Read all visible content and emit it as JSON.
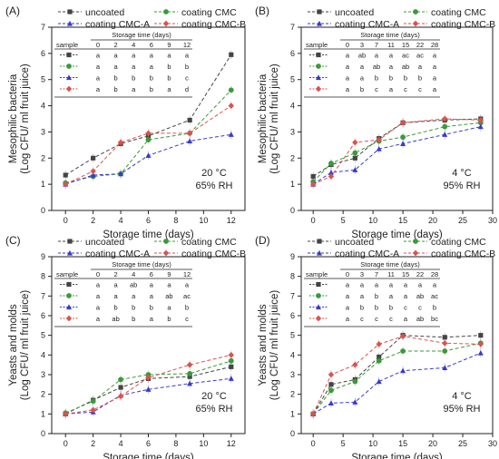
{
  "legend": [
    {
      "name": "uncoated",
      "color": "#444444",
      "marker": "square"
    },
    {
      "name": "coating CMC",
      "color": "#3a9a3a",
      "marker": "circle"
    },
    {
      "name": "coating CMC-A",
      "color": "#3a3ac8",
      "marker": "triangle"
    },
    {
      "name": "coating CMC-B",
      "color": "#d9534f",
      "marker": "diamond"
    }
  ],
  "chart_data": [
    {
      "panel": "(A)",
      "type": "line",
      "ylabel_line1": "Mesophilic bacteria",
      "ylabel_line2": "(Log CFU/ ml fruit juice)",
      "xlabel": "Storage time (days)",
      "xlim": [
        -1,
        13
      ],
      "ylim": [
        0,
        7
      ],
      "xticks": [
        0,
        2,
        4,
        6,
        8,
        10,
        12
      ],
      "yticks": [
        0,
        1,
        2,
        3,
        4,
        5,
        6,
        7
      ],
      "condition_temp": "20 °C",
      "condition_rh": "65% RH",
      "series": [
        {
          "name": "uncoated",
          "x": [
            0,
            2,
            4,
            6,
            9,
            12
          ],
          "y": [
            1.35,
            2.0,
            2.55,
            2.85,
            3.45,
            5.95
          ]
        },
        {
          "name": "coating CMC",
          "x": [
            0,
            2,
            4,
            6,
            9,
            12
          ],
          "y": [
            1.05,
            1.3,
            1.4,
            2.7,
            2.95,
            4.6
          ]
        },
        {
          "name": "coating CMC-A",
          "x": [
            0,
            2,
            4,
            6,
            9,
            12
          ],
          "y": [
            1.0,
            1.35,
            1.4,
            2.1,
            2.65,
            2.9
          ]
        },
        {
          "name": "coating CMC-B",
          "x": [
            0,
            2,
            4,
            6,
            9,
            12
          ],
          "y": [
            1.0,
            1.5,
            2.6,
            2.95,
            2.95,
            4.0
          ]
        }
      ],
      "table": {
        "title": "Storage time (days)",
        "sample_label": "sample",
        "columns": [
          "0",
          "2",
          "4",
          "6",
          "9",
          "12"
        ],
        "rows": [
          [
            "a",
            "a",
            "a",
            "a",
            "a",
            "a"
          ],
          [
            "a",
            "a",
            "a",
            "a",
            "b",
            "b"
          ],
          [
            "a",
            "b",
            "b",
            "b",
            "b",
            "c"
          ],
          [
            "a",
            "b",
            "a",
            "b",
            "a",
            "d"
          ]
        ]
      }
    },
    {
      "panel": "(B)",
      "type": "line",
      "ylabel_line1": "Mesophilic bacteria",
      "ylabel_line2": "(Log CFU/ ml fruit juice)",
      "xlabel": "Storage time (days)",
      "xlim": [
        -2,
        30
      ],
      "ylim": [
        0,
        7
      ],
      "xticks": [
        0,
        5,
        10,
        15,
        20,
        25,
        30
      ],
      "yticks": [
        0,
        1,
        2,
        3,
        4,
        5,
        6,
        7
      ],
      "condition_temp": "4 °C",
      "condition_rh": "95% RH",
      "series": [
        {
          "name": "uncoated",
          "x": [
            0,
            3,
            7,
            11,
            15,
            22,
            28
          ],
          "y": [
            1.3,
            1.75,
            2.0,
            2.75,
            3.35,
            3.45,
            3.5
          ]
        },
        {
          "name": "coating CMC",
          "x": [
            0,
            3,
            7,
            11,
            15,
            22,
            28
          ],
          "y": [
            1.1,
            1.8,
            2.2,
            2.65,
            2.8,
            3.2,
            3.35
          ]
        },
        {
          "name": "coating CMC-A",
          "x": [
            0,
            3,
            7,
            11,
            15,
            22,
            28
          ],
          "y": [
            1.0,
            1.45,
            1.55,
            2.35,
            2.55,
            2.9,
            3.2
          ]
        },
        {
          "name": "coating CMC-B",
          "x": [
            0,
            3,
            7,
            11,
            15,
            22,
            28
          ],
          "y": [
            1.0,
            1.3,
            2.6,
            2.7,
            3.35,
            3.5,
            3.45
          ]
        }
      ],
      "table": {
        "title": "Storage time (days)",
        "sample_label": "sample",
        "columns": [
          "0",
          "3",
          "7",
          "11",
          "15",
          "22",
          "28"
        ],
        "rows": [
          [
            "a",
            "ab",
            "a",
            "a",
            "ac",
            "ac",
            "a"
          ],
          [
            "a",
            "a",
            "ab",
            "a",
            "ab",
            "a",
            "a"
          ],
          [
            "a",
            "a",
            "b",
            "b",
            "b",
            "b",
            "a"
          ],
          [
            "a",
            "b",
            "c",
            "a",
            "c",
            "c",
            "a"
          ]
        ]
      }
    },
    {
      "panel": "(C)",
      "type": "line",
      "ylabel_line1": "Yeasts and molds",
      "ylabel_line2": "(Log CFU/ ml fruit juice)",
      "xlabel": "Storage time (days)",
      "xlim": [
        -1,
        13
      ],
      "ylim": [
        0,
        9
      ],
      "xticks": [
        0,
        2,
        4,
        6,
        8,
        10,
        12
      ],
      "yticks": [
        0,
        1,
        2,
        3,
        4,
        5,
        6,
        7,
        8,
        9
      ],
      "condition_temp": "20 °C",
      "condition_rh": "65% RH",
      "series": [
        {
          "name": "uncoated",
          "x": [
            0,
            2,
            4,
            6,
            9,
            12
          ],
          "y": [
            1.0,
            1.7,
            2.35,
            2.8,
            2.9,
            3.4
          ]
        },
        {
          "name": "coating CMC",
          "x": [
            0,
            2,
            4,
            6,
            9,
            12
          ],
          "y": [
            1.05,
            1.65,
            2.75,
            3.0,
            3.05,
            3.7
          ]
        },
        {
          "name": "coating CMC-A",
          "x": [
            0,
            2,
            4,
            6,
            9,
            12
          ],
          "y": [
            1.0,
            1.1,
            1.95,
            2.25,
            2.55,
            2.8
          ]
        },
        {
          "name": "coating CMC-B",
          "x": [
            0,
            2,
            4,
            6,
            9,
            12
          ],
          "y": [
            1.0,
            1.2,
            1.9,
            2.85,
            3.5,
            4.0
          ]
        }
      ],
      "table": {
        "title": "Storage time (days)",
        "sample_label": "sample",
        "columns": [
          "0",
          "2",
          "4",
          "6",
          "9",
          "12"
        ],
        "rows": [
          [
            "a",
            "a",
            "ab",
            "a",
            "a",
            "a"
          ],
          [
            "a",
            "a",
            "a",
            "a",
            "ab",
            "ac"
          ],
          [
            "a",
            "b",
            "b",
            "b",
            "a",
            "b"
          ],
          [
            "a",
            "ab",
            "b",
            "a",
            "b",
            "c"
          ]
        ]
      }
    },
    {
      "panel": "(D)",
      "type": "line",
      "ylabel_line1": "Yeasts and molds",
      "ylabel_line2": "(Log CFU/ ml fruit juice)",
      "xlabel": "Storage time (days)",
      "xlim": [
        -2,
        30
      ],
      "ylim": [
        0,
        9
      ],
      "xticks": [
        0,
        5,
        10,
        15,
        20,
        25,
        30
      ],
      "yticks": [
        0,
        1,
        2,
        3,
        4,
        5,
        6,
        7,
        8,
        9
      ],
      "condition_temp": "4 °C",
      "condition_rh": "95% RH",
      "series": [
        {
          "name": "uncoated",
          "x": [
            0,
            3,
            7,
            11,
            15,
            22,
            28
          ],
          "y": [
            1.0,
            2.5,
            2.75,
            3.9,
            5.0,
            4.9,
            5.0
          ]
        },
        {
          "name": "coating CMC",
          "x": [
            0,
            3,
            7,
            11,
            15,
            22,
            28
          ],
          "y": [
            1.0,
            2.2,
            2.65,
            3.7,
            4.2,
            4.2,
            4.6
          ]
        },
        {
          "name": "coating CMC-A",
          "x": [
            0,
            3,
            7,
            11,
            15,
            22,
            28
          ],
          "y": [
            1.0,
            1.55,
            1.6,
            2.65,
            3.2,
            3.35,
            4.1
          ]
        },
        {
          "name": "coating CMC-B",
          "x": [
            0,
            3,
            7,
            11,
            15,
            22,
            28
          ],
          "y": [
            1.0,
            3.0,
            3.5,
            4.55,
            4.95,
            4.6,
            4.55
          ]
        }
      ],
      "table": {
        "title": "Storage time (days)",
        "sample_label": "sample",
        "columns": [
          "0",
          "3",
          "7",
          "11",
          "15",
          "22",
          "28"
        ],
        "rows": [
          [
            "a",
            "a",
            "a",
            "a",
            "a",
            "a",
            "a"
          ],
          [
            "a",
            "a",
            "b",
            "a",
            "a",
            "ab",
            "ac"
          ],
          [
            "a",
            "b",
            "b",
            "b",
            "c",
            "c",
            "b"
          ],
          [
            "a",
            "c",
            "c",
            "c",
            "a",
            "ab",
            "bc"
          ]
        ]
      }
    }
  ]
}
